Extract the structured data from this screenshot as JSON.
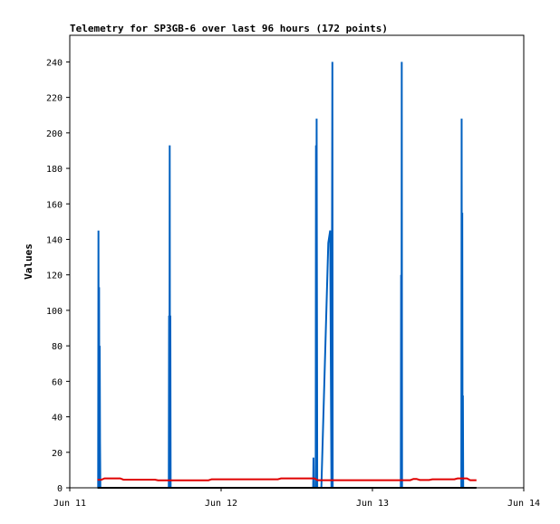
{
  "chart_data": {
    "type": "line",
    "title": "Telemetry for SP3GB-6 over last 96 hours (172 points)",
    "xlabel": "",
    "ylabel": "Values",
    "x_tick_labels": [
      "Jun 11",
      "Jun 12",
      "Jun 13",
      "Jun 14"
    ],
    "x_ticks": [
      0,
      24,
      48,
      72
    ],
    "y_ticks": [
      0,
      20,
      40,
      60,
      80,
      100,
      120,
      140,
      160,
      180,
      200,
      220,
      240
    ],
    "ylim": [
      0,
      255
    ],
    "xlim": [
      0,
      72
    ],
    "grid": false,
    "legend": "none",
    "series": [
      {
        "color": "#0060c0",
        "points": [
          [
            4.5,
            0
          ],
          [
            4.55,
            145
          ],
          [
            4.6,
            0
          ],
          [
            4.65,
            113
          ],
          [
            4.7,
            0
          ],
          [
            4.75,
            80
          ],
          [
            4.8,
            25
          ],
          [
            4.85,
            0
          ],
          [
            15.7,
            0
          ],
          [
            15.75,
            97
          ],
          [
            15.8,
            0
          ],
          [
            15.85,
            193
          ],
          [
            15.9,
            0
          ],
          [
            15.95,
            97
          ],
          [
            16.0,
            0
          ],
          [
            38.6,
            0
          ],
          [
            38.65,
            17
          ],
          [
            38.7,
            0
          ],
          [
            39.0,
            0
          ],
          [
            39.05,
            193
          ],
          [
            39.1,
            0
          ],
          [
            39.15,
            208
          ],
          [
            39.2,
            104
          ],
          [
            39.25,
            0
          ],
          [
            39.9,
            0
          ],
          [
            41.0,
            138
          ],
          [
            41.3,
            145
          ],
          [
            41.5,
            0
          ],
          [
            41.6,
            157
          ],
          [
            41.65,
            240
          ],
          [
            41.7,
            0
          ],
          [
            52.5,
            0
          ],
          [
            52.55,
            120
          ],
          [
            52.6,
            0
          ],
          [
            52.65,
            240
          ],
          [
            52.7,
            0
          ],
          [
            62.1,
            0
          ],
          [
            62.15,
            208
          ],
          [
            62.2,
            0
          ],
          [
            62.25,
            155
          ],
          [
            62.3,
            0
          ],
          [
            62.35,
            52
          ],
          [
            62.4,
            0
          ]
        ]
      },
      {
        "color": "#e00000",
        "points": [
          [
            4.4,
            4.5
          ],
          [
            5.0,
            4.5
          ],
          [
            5.5,
            5.3
          ],
          [
            8.0,
            5.3
          ],
          [
            8.5,
            4.6
          ],
          [
            13.5,
            4.6
          ],
          [
            14.0,
            4.2
          ],
          [
            22.0,
            4.2
          ],
          [
            22.5,
            4.8
          ],
          [
            33.0,
            4.8
          ],
          [
            33.5,
            5.3
          ],
          [
            38.8,
            5.3
          ],
          [
            39.3,
            4.3
          ],
          [
            54.0,
            4.3
          ],
          [
            54.5,
            5.0
          ],
          [
            55.0,
            5.0
          ],
          [
            55.5,
            4.4
          ],
          [
            57.0,
            4.4
          ],
          [
            57.5,
            4.8
          ],
          [
            61.0,
            4.8
          ],
          [
            61.5,
            5.3
          ],
          [
            63.0,
            5.3
          ],
          [
            63.5,
            4.3
          ],
          [
            64.5,
            4.3
          ]
        ]
      },
      {
        "color": "#000000",
        "points": [
          [
            4.4,
            0
          ],
          [
            64.5,
            0
          ]
        ]
      }
    ]
  }
}
